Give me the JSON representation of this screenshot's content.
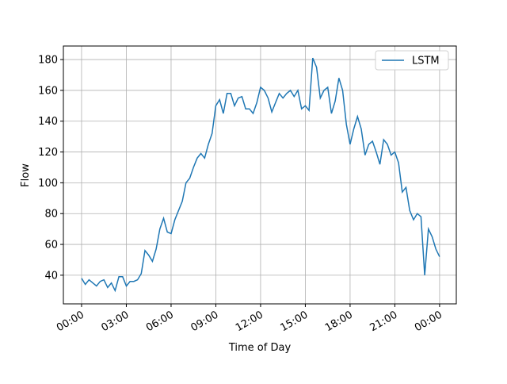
{
  "chart_data": {
    "type": "line",
    "xlabel": "Time of Day",
    "ylabel": "Flow",
    "x": [
      0,
      0.25,
      0.5,
      0.75,
      1,
      1.25,
      1.5,
      1.75,
      2,
      2.25,
      2.5,
      2.75,
      3,
      3.25,
      3.5,
      3.75,
      4,
      4.25,
      4.5,
      4.75,
      5,
      5.25,
      5.5,
      5.75,
      6,
      6.25,
      6.5,
      6.75,
      7,
      7.25,
      7.5,
      7.75,
      8,
      8.25,
      8.5,
      8.75,
      9,
      9.25,
      9.5,
      9.75,
      10,
      10.25,
      10.5,
      10.75,
      11,
      11.25,
      11.5,
      11.75,
      12,
      12.25,
      12.5,
      12.75,
      13,
      13.25,
      13.5,
      13.75,
      14,
      14.25,
      14.5,
      14.75,
      15,
      15.25,
      15.5,
      15.75,
      16,
      16.25,
      16.5,
      16.75,
      17,
      17.25,
      17.5,
      17.75,
      18,
      18.25,
      18.5,
      18.75,
      19,
      19.25,
      19.5,
      19.75,
      20,
      20.25,
      20.5,
      20.75,
      21,
      21.25,
      21.5,
      21.75,
      22,
      22.25,
      22.5,
      22.75,
      23,
      23.25,
      23.5,
      23.75,
      24
    ],
    "series": [
      {
        "name": "LSTM",
        "color": "#1f77b4",
        "values": [
          38,
          34,
          37,
          35,
          33,
          36,
          37,
          32,
          35,
          30,
          39,
          39,
          33,
          36,
          36,
          37,
          41,
          56,
          53,
          49,
          57,
          70,
          77,
          68,
          67,
          76,
          82,
          88,
          100,
          103,
          110,
          116,
          119,
          116,
          125,
          132,
          150,
          154,
          145,
          158,
          158,
          150,
          155,
          156,
          148,
          148,
          145,
          152,
          162,
          160,
          155,
          146,
          152,
          158,
          155,
          158,
          160,
          156,
          160,
          148,
          150,
          147,
          181,
          175,
          155,
          160,
          162,
          145,
          153,
          168,
          160,
          138,
          125,
          135,
          143,
          135,
          118,
          125,
          127,
          120,
          112,
          128,
          125,
          118,
          120,
          113,
          94,
          97,
          82,
          76,
          80,
          78,
          40,
          70,
          65,
          57,
          52
        ]
      }
    ],
    "xlim": [
      -1.22,
      25.12
    ],
    "xticks": [
      {
        "value": 0,
        "label": "00:00"
      },
      {
        "value": 3,
        "label": "03:00"
      },
      {
        "value": 6,
        "label": "06:00"
      },
      {
        "value": 9,
        "label": "09:00"
      },
      {
        "value": 12,
        "label": "12:00"
      },
      {
        "value": 15,
        "label": "15:00"
      },
      {
        "value": 18,
        "label": "18:00"
      },
      {
        "value": 21,
        "label": "21:00"
      },
      {
        "value": 24,
        "label": "00:00"
      }
    ],
    "ylim": [
      21.4,
      188.8
    ],
    "yticks": [
      40,
      60,
      80,
      100,
      120,
      140,
      160,
      180
    ],
    "grid": true,
    "legend": "upper right"
  }
}
